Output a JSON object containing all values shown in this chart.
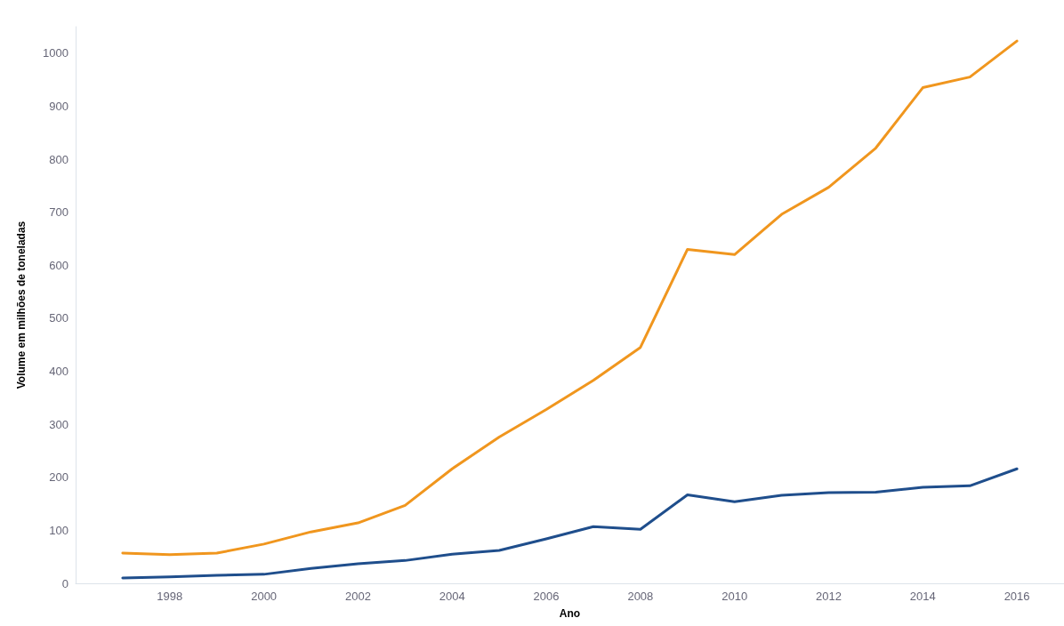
{
  "chart_data": {
    "type": "line",
    "xlabel": "Ano",
    "ylabel": "Volume em milhões de toneladas",
    "x": [
      1997,
      1998,
      1999,
      2000,
      2001,
      2002,
      2003,
      2004,
      2005,
      2006,
      2007,
      2008,
      2009,
      2010,
      2011,
      2012,
      2013,
      2014,
      2015,
      2016
    ],
    "series": [
      {
        "color": "#f0961e",
        "values": [
          57,
          54,
          57,
          74,
          97,
          114,
          147,
          216,
          276,
          328,
          383,
          445,
          630,
          620,
          696,
          747,
          821,
          935,
          955,
          1023
        ]
      },
      {
        "color": "#1f4e8c",
        "values": [
          10,
          12,
          15,
          17,
          28,
          37,
          43,
          55,
          62,
          84,
          107,
          102,
          167,
          154,
          166,
          171,
          172,
          181,
          184,
          216
        ]
      }
    ],
    "xlim": [
      1996,
      2017
    ],
    "xticks": [
      1998,
      2000,
      2002,
      2004,
      2006,
      2008,
      2010,
      2012,
      2014,
      2016
    ],
    "ylim": [
      0,
      1050
    ],
    "yticks": [
      0,
      100,
      200,
      300,
      400,
      500,
      600,
      700,
      800,
      900,
      1000
    ],
    "grid": false,
    "marker": "none",
    "line_style": "solid"
  }
}
